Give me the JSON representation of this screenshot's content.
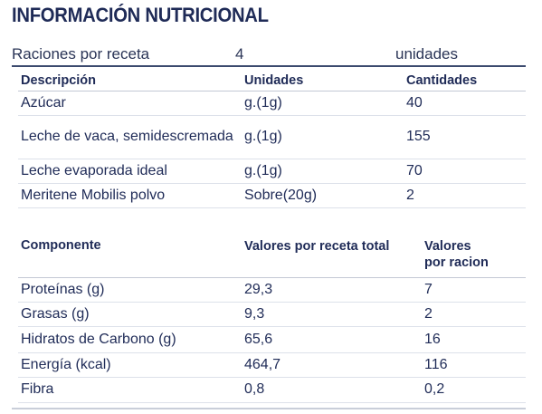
{
  "title": "INFORMACIÓN NUTRICIONAL",
  "raciones": {
    "label": "Raciones por receta",
    "value": "4",
    "unit": "unidades"
  },
  "ingredients": {
    "headers": [
      "Descripción",
      "Unidades",
      "Cantidades"
    ],
    "rows": [
      {
        "name": "Azúcar",
        "unit": "g.(1g)",
        "qty": "40"
      },
      {
        "name": "Leche de vaca, semidescremada",
        "unit": "g.(1g)",
        "qty": "155"
      },
      {
        "name": "Leche evaporada ideal",
        "unit": "g.(1g)",
        "qty": "70"
      },
      {
        "name": "Meritene Mobilis polvo",
        "unit": "Sobre(20g)",
        "qty": "2"
      }
    ]
  },
  "nutrients": {
    "headers": [
      "Componente",
      "Valores por receta total",
      "Valores por racion"
    ],
    "rows": [
      {
        "name": "Proteínas (g)",
        "total": "29,3",
        "per": "7"
      },
      {
        "name": "Grasas (g)",
        "total": "9,3",
        "per": "2"
      },
      {
        "name": "Hidratos de Carbono (g)",
        "total": "65,6",
        "per": "16"
      },
      {
        "name": "Energía (kcal)",
        "total": "464,7",
        "per": "116"
      },
      {
        "name": "Fibra",
        "total": "0,8",
        "per": "0,2"
      }
    ]
  }
}
